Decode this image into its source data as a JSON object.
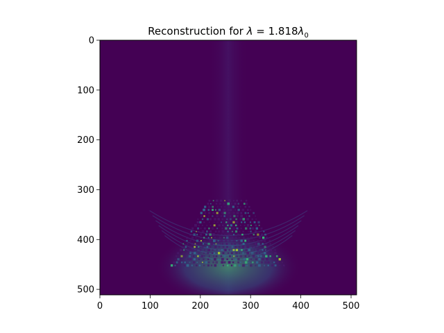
{
  "chart_data": {
    "type": "heatmap",
    "title_prefix": "Reconstruction for ",
    "title_math": {
      "symbol": "λ",
      "equals": " = ",
      "value": "1.818",
      "symbol2": "λ",
      "subscript": "0"
    },
    "xlabel": "",
    "ylabel": "",
    "xlim": [
      0,
      511
    ],
    "ylim": [
      511,
      0
    ],
    "x_ticks": [
      0,
      100,
      200,
      300,
      400,
      500
    ],
    "y_ticks": [
      0,
      100,
      200,
      300,
      400,
      500
    ],
    "colormap": "viridis",
    "colors": {
      "background": "#440154",
      "low": "#48186a",
      "mid": "#31688e",
      "high": "#35b779",
      "peak": "#b5de2b"
    },
    "grid": false,
    "feature": {
      "description_values": {
        "center_x": 256,
        "top_y": 322,
        "bottom_y": 452,
        "half_width_top": 40,
        "half_width_bottom": 115
      }
    }
  }
}
